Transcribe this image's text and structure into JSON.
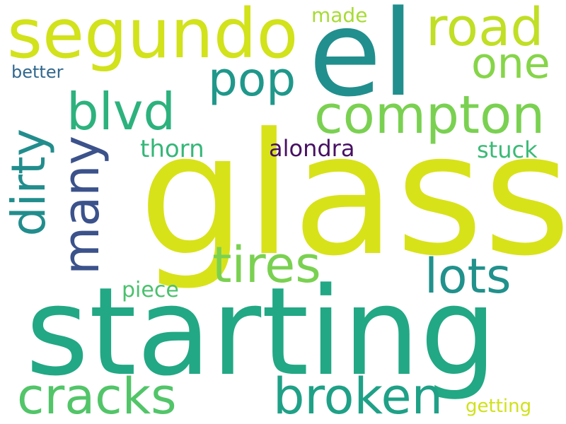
{
  "words": {
    "glass": {
      "text": "glass",
      "color": "#d8e219"
    },
    "starting": {
      "text": "starting",
      "color": "#22a884"
    },
    "el": {
      "text": "el",
      "color": "#218f8d"
    },
    "segundo": {
      "text": "segundo",
      "color": "#d2e21b"
    },
    "compton": {
      "text": "compton",
      "color": "#7ad151"
    },
    "road": {
      "text": "road",
      "color": "#c0df25"
    },
    "blvd": {
      "text": "blvd",
      "color": "#2db27d"
    },
    "pop": {
      "text": "pop",
      "color": "#1f988b"
    },
    "one": {
      "text": "one",
      "color": "#86d549"
    },
    "tires": {
      "text": "tires",
      "color": "#7ad151"
    },
    "lots": {
      "text": "lots",
      "color": "#21918c"
    },
    "cracks": {
      "text": "cracks",
      "color": "#52c569"
    },
    "broken": {
      "text": "broken",
      "color": "#1fa187"
    },
    "dirty": {
      "text": "dirty",
      "color": "#228d8d"
    },
    "many": {
      "text": "many",
      "color": "#3b528b"
    },
    "thorn": {
      "text": "thorn",
      "color": "#35b779"
    },
    "alondra": {
      "text": "alondra",
      "color": "#471063"
    },
    "stuck": {
      "text": "stuck",
      "color": "#3aba76"
    },
    "made": {
      "text": "made",
      "color": "#a8db34"
    },
    "better": {
      "text": "better",
      "color": "#31688e"
    },
    "piece": {
      "text": "piece",
      "color": "#4ac16d"
    },
    "getting": {
      "text": "getting",
      "color": "#d0e11c"
    }
  }
}
